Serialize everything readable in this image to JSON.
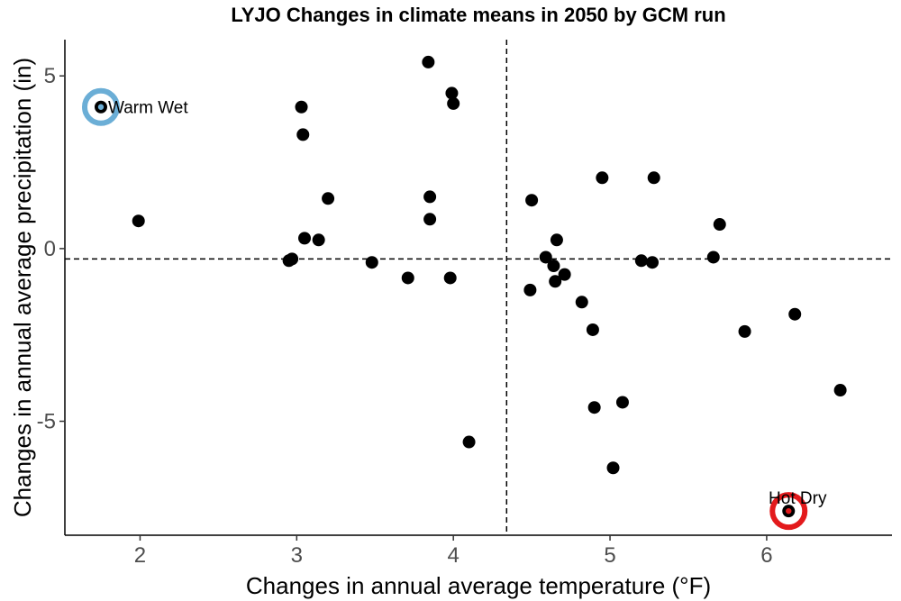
{
  "chart_data": {
    "type": "scatter",
    "title": "LYJO Changes in climate means in 2050 by GCM run",
    "xlabel": "Changes in annual average temperature (°F)",
    "ylabel": "Changes in annual average precipitation (in)",
    "xlim": [
      1.52,
      6.8
    ],
    "ylim": [
      -8.3,
      6.05
    ],
    "x_ticks": [
      2,
      3,
      4,
      5,
      6
    ],
    "x_tick_labels": [
      "2",
      "3",
      "4",
      "5",
      "6"
    ],
    "y_ticks": [
      5,
      0,
      -5
    ],
    "y_tick_labels": [
      "5",
      "0",
      "-5"
    ],
    "grid": false,
    "reference_lines": {
      "x": 4.34,
      "y": -0.3
    },
    "point_color": "#000000",
    "points": [
      {
        "x": 1.75,
        "y": 4.1
      },
      {
        "x": 1.99,
        "y": 0.8
      },
      {
        "x": 2.95,
        "y": -0.35
      },
      {
        "x": 2.97,
        "y": -0.3
      },
      {
        "x": 3.03,
        "y": 4.1
      },
      {
        "x": 3.04,
        "y": 3.3
      },
      {
        "x": 3.05,
        "y": 0.3
      },
      {
        "x": 3.14,
        "y": 0.25
      },
      {
        "x": 3.2,
        "y": 1.45
      },
      {
        "x": 3.48,
        "y": -0.4
      },
      {
        "x": 3.71,
        "y": -0.85
      },
      {
        "x": 3.84,
        "y": 5.4
      },
      {
        "x": 3.85,
        "y": 1.5
      },
      {
        "x": 3.85,
        "y": 0.85
      },
      {
        "x": 3.98,
        "y": -0.85
      },
      {
        "x": 3.99,
        "y": 4.5
      },
      {
        "x": 4.0,
        "y": 4.2
      },
      {
        "x": 4.1,
        "y": -5.6
      },
      {
        "x": 4.49,
        "y": -1.2
      },
      {
        "x": 4.5,
        "y": 1.4
      },
      {
        "x": 4.59,
        "y": -0.25
      },
      {
        "x": 4.64,
        "y": -0.5
      },
      {
        "x": 4.65,
        "y": -0.95
      },
      {
        "x": 4.66,
        "y": 0.25
      },
      {
        "x": 4.71,
        "y": -0.75
      },
      {
        "x": 4.82,
        "y": -1.55
      },
      {
        "x": 4.89,
        "y": -2.35
      },
      {
        "x": 4.9,
        "y": -4.6
      },
      {
        "x": 4.95,
        "y": 2.05
      },
      {
        "x": 5.02,
        "y": -6.35
      },
      {
        "x": 5.08,
        "y": -4.45
      },
      {
        "x": 5.2,
        "y": -0.35
      },
      {
        "x": 5.27,
        "y": -0.4
      },
      {
        "x": 5.28,
        "y": 2.05
      },
      {
        "x": 5.66,
        "y": -0.25
      },
      {
        "x": 5.7,
        "y": 0.7
      },
      {
        "x": 5.86,
        "y": -2.4
      },
      {
        "x": 6.14,
        "y": -7.6
      },
      {
        "x": 6.18,
        "y": -1.9
      },
      {
        "x": 6.47,
        "y": -4.1
      }
    ],
    "highlights": [
      {
        "label": "Warm Wet",
        "x": 1.75,
        "y": 4.1,
        "ring_color": "#6baed6",
        "inner_color": "#6baed6",
        "label_position": "right"
      },
      {
        "label": "Hot Dry",
        "x": 6.14,
        "y": -7.6,
        "ring_color": "#e31a1c",
        "inner_color": "#e31a1c",
        "label_position": "above"
      }
    ]
  }
}
